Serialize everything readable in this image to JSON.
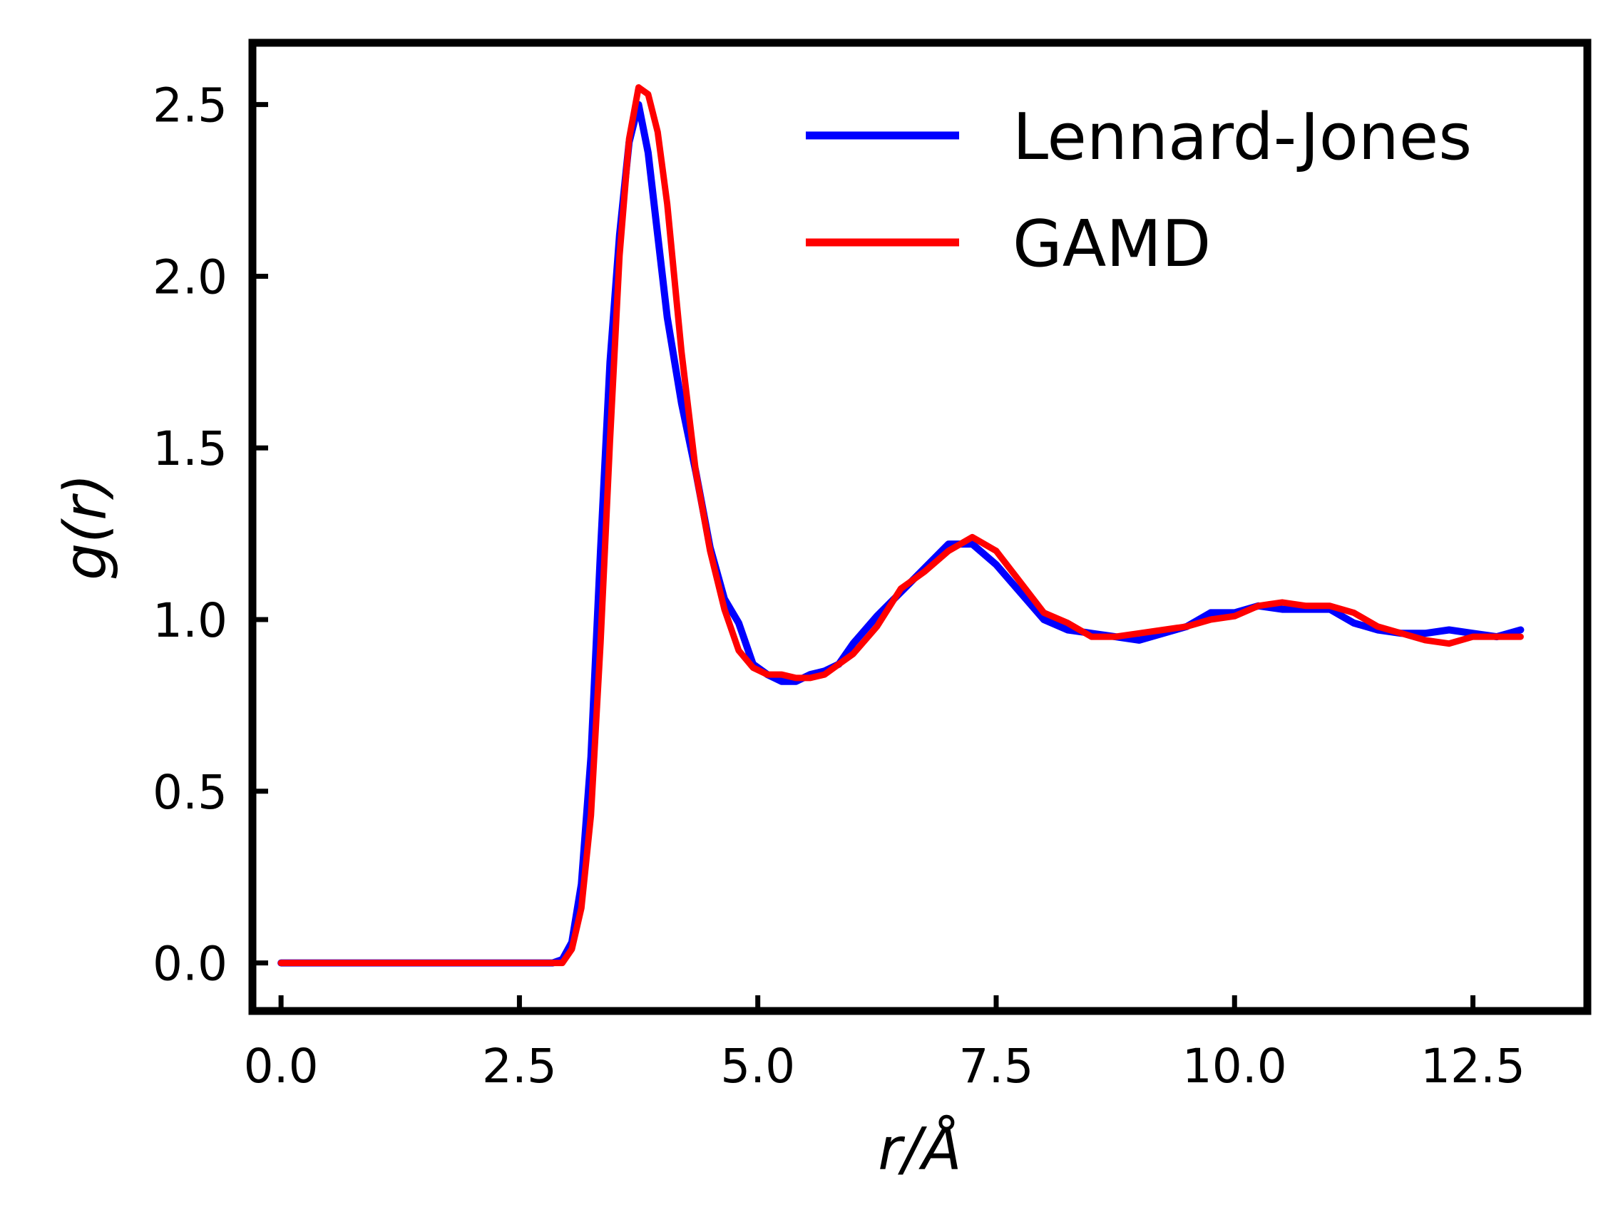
{
  "chart_data": {
    "type": "line",
    "xlabel": "r/Å",
    "ylabel": "g(r)",
    "xlim": [
      -0.3,
      13.7
    ],
    "ylim": [
      -0.14,
      2.68
    ],
    "xticks": [
      0.0,
      2.5,
      5.0,
      7.5,
      10.0,
      12.5
    ],
    "xtick_labels": [
      "0.0",
      "2.5",
      "5.0",
      "7.5",
      "10.0",
      "12.5"
    ],
    "yticks": [
      0.0,
      0.5,
      1.0,
      1.5,
      2.0,
      2.5
    ],
    "ytick_labels": [
      "0.0",
      "0.5",
      "1.0",
      "1.5",
      "2.0",
      "2.5"
    ],
    "grid": false,
    "legend": "top-right",
    "series": [
      {
        "name": "Lennard-Jones",
        "color": "#0000ff",
        "x": [
          0.0,
          2.5,
          2.85,
          2.95,
          3.05,
          3.15,
          3.25,
          3.35,
          3.45,
          3.55,
          3.65,
          3.75,
          3.85,
          3.95,
          4.05,
          4.2,
          4.35,
          4.5,
          4.65,
          4.8,
          4.95,
          5.1,
          5.25,
          5.4,
          5.55,
          5.7,
          5.85,
          6.0,
          6.25,
          6.5,
          6.75,
          7.0,
          7.25,
          7.5,
          7.75,
          8.0,
          8.25,
          8.5,
          8.75,
          9.0,
          9.25,
          9.5,
          9.75,
          10.0,
          10.25,
          10.5,
          10.75,
          11.0,
          11.25,
          11.5,
          11.75,
          12.0,
          12.25,
          12.5,
          12.75,
          13.0
        ],
        "y": [
          0.0,
          0.0,
          0.0,
          0.01,
          0.06,
          0.23,
          0.6,
          1.2,
          1.75,
          2.12,
          2.39,
          2.5,
          2.36,
          2.12,
          1.88,
          1.63,
          1.43,
          1.21,
          1.06,
          0.99,
          0.87,
          0.84,
          0.82,
          0.82,
          0.84,
          0.85,
          0.87,
          0.93,
          1.01,
          1.08,
          1.15,
          1.22,
          1.22,
          1.16,
          1.08,
          1.0,
          0.97,
          0.96,
          0.95,
          0.94,
          0.96,
          0.98,
          1.02,
          1.02,
          1.04,
          1.03,
          1.03,
          1.03,
          0.99,
          0.97,
          0.96,
          0.96,
          0.97,
          0.96,
          0.95,
          0.97
        ]
      },
      {
        "name": "GAMD",
        "color": "#ff0000",
        "x": [
          0.0,
          2.5,
          2.85,
          2.95,
          3.05,
          3.15,
          3.25,
          3.35,
          3.45,
          3.55,
          3.65,
          3.75,
          3.85,
          3.95,
          4.05,
          4.2,
          4.35,
          4.5,
          4.65,
          4.8,
          4.95,
          5.1,
          5.25,
          5.4,
          5.55,
          5.7,
          5.85,
          6.0,
          6.25,
          6.5,
          6.75,
          7.0,
          7.25,
          7.5,
          7.75,
          8.0,
          8.25,
          8.5,
          8.75,
          9.0,
          9.25,
          9.5,
          9.75,
          10.0,
          10.25,
          10.5,
          10.75,
          11.0,
          11.25,
          11.5,
          11.75,
          12.0,
          12.25,
          12.5,
          12.75,
          13.0
        ],
        "y": [
          0.0,
          0.0,
          0.0,
          0.0,
          0.04,
          0.16,
          0.43,
          0.93,
          1.52,
          2.06,
          2.4,
          2.55,
          2.53,
          2.42,
          2.21,
          1.78,
          1.43,
          1.2,
          1.03,
          0.91,
          0.86,
          0.84,
          0.84,
          0.83,
          0.83,
          0.84,
          0.87,
          0.9,
          0.98,
          1.09,
          1.14,
          1.2,
          1.24,
          1.2,
          1.11,
          1.02,
          0.99,
          0.95,
          0.95,
          0.96,
          0.97,
          0.98,
          1.0,
          1.01,
          1.04,
          1.05,
          1.04,
          1.04,
          1.02,
          0.98,
          0.96,
          0.94,
          0.93,
          0.95,
          0.95,
          0.95
        ]
      }
    ]
  }
}
